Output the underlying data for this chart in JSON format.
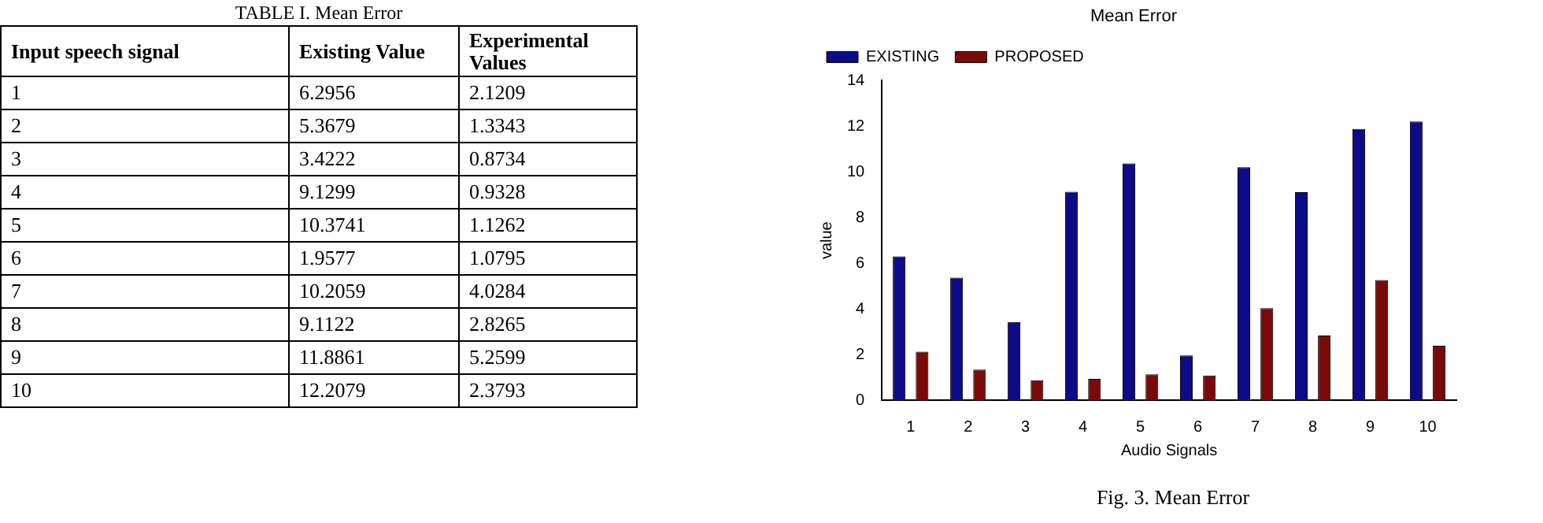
{
  "chart_data": {
    "type": "bar",
    "title": "Mean Error",
    "xlabel": "Audio Signals",
    "ylabel": "value",
    "categories": [
      "1",
      "2",
      "3",
      "4",
      "5",
      "6",
      "7",
      "8",
      "9",
      "10"
    ],
    "series": [
      {
        "name": "EXISTING",
        "color": "#0c0c8a",
        "values": [
          6.2956,
          5.3679,
          3.4222,
          9.1299,
          10.3741,
          1.9577,
          10.2059,
          9.1122,
          11.8861,
          12.2079
        ]
      },
      {
        "name": "PROPOSED",
        "color": "#7a0a0a",
        "values": [
          2.1209,
          1.3343,
          0.8734,
          0.9328,
          1.1262,
          1.0795,
          4.0284,
          2.8265,
          5.2599,
          2.3793
        ]
      }
    ],
    "ylim": [
      0,
      14
    ],
    "yticks": [
      0,
      2,
      4,
      6,
      8,
      10,
      12,
      14
    ],
    "grid": false,
    "legend": "top left",
    "annotations": [
      "TABLE I. Mean Error",
      "Input speech signal",
      "Existing Value",
      "Experimental Values",
      "6.2956",
      "2.1209",
      "5.3679",
      "1.3343",
      "3.4222",
      "0.8734",
      "9.1299",
      "0.9328",
      "10.3741",
      "1.1262",
      "1.9577",
      "1.0795",
      "10.2059",
      "4.0284",
      "9.1122",
      "2.8265",
      "11.8861",
      "5.2599",
      "12.2079",
      "2.3793",
      "Fig. 3. Mean Error"
    ]
  }
}
